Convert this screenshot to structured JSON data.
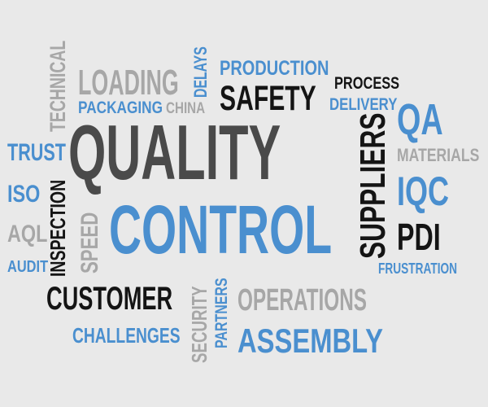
{
  "colors": {
    "background": "#e9e9e9",
    "blue": "#4a8fcf",
    "dark": "#4a4a4a",
    "black": "#141414",
    "gray": "#a7a7a7"
  },
  "words": {
    "quality": "QUALITY",
    "control": "CONTROL",
    "safety": "SAFETY",
    "suppliers": "SUPPLIERS",
    "customer": "CUSTOMER",
    "assembly": "ASSEMBLY",
    "operations": "OPERATIONS",
    "loading": "LOADING",
    "production": "PRODUCTION",
    "process": "PROCESS",
    "delivery": "DELIVERY",
    "delays": "DELAYS",
    "packaging": "PACKAGING",
    "china": "CHINA",
    "technical": "TECHNICAL",
    "trust": "TRUST",
    "iso": "ISO",
    "aql": "AQL",
    "audit": "AUDIT",
    "inspection": "INSPECTION",
    "speed": "SPEED",
    "qa": "QA",
    "materials": "MATERIALS",
    "iqc": "IQC",
    "pdi": "PDI",
    "frustration": "FRUSTRATION",
    "challenges": "CHALLENGES",
    "security": "SECURITY",
    "partners": "PARTNERS"
  }
}
